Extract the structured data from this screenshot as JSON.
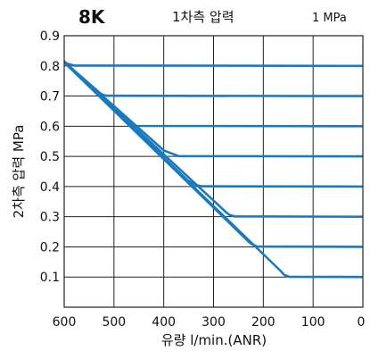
{
  "header": {
    "model": "8K",
    "title": "1차측 압력",
    "value": "1 MPa"
  },
  "chart_data": {
    "type": "line",
    "xlabel": "유량 l/min.(ANR)",
    "ylabel": "2차측 압력 MPa",
    "xlim": [
      600,
      0
    ],
    "ylim": [
      0,
      0.9
    ],
    "x_reversed": true,
    "x_ticks": [
      600,
      500,
      400,
      300,
      200,
      100,
      0
    ],
    "y_ticks": [
      0.1,
      0.2,
      0.3,
      0.4,
      0.5,
      0.6,
      0.7,
      0.8,
      0.9
    ],
    "x_tick_labels": [
      "600",
      "500",
      "400",
      "300",
      "200",
      "100",
      "0"
    ],
    "y_tick_labels": [
      "0.1",
      "0.2",
      "0.3",
      "0.4",
      "0.5",
      "0.6",
      "0.7",
      "0.8",
      "0.9"
    ],
    "grid": true,
    "line_color": "#1a7abf",
    "series": [
      {
        "x": [
          0,
          580,
          595,
          600,
          608
        ],
        "y": [
          0.8,
          0.801,
          0.808,
          0.815,
          0.825
        ]
      },
      {
        "x": [
          0,
          515,
          522,
          528,
          608
        ],
        "y": [
          0.7,
          0.701,
          0.704,
          0.71,
          0.825
        ]
      },
      {
        "x": [
          0,
          455,
          465,
          472,
          608
        ],
        "y": [
          0.6,
          0.601,
          0.605,
          0.615,
          0.825
        ]
      },
      {
        "x": [
          0,
          370,
          385,
          400,
          608
        ],
        "y": [
          0.5,
          0.501,
          0.51,
          0.52,
          0.825
        ]
      },
      {
        "x": [
          0,
          325,
          340,
          352,
          608
        ],
        "y": [
          0.4,
          0.401,
          0.408,
          0.42,
          0.825
        ]
      },
      {
        "x": [
          0,
          258,
          268,
          275,
          608
        ],
        "y": [
          0.3,
          0.301,
          0.306,
          0.315,
          0.825
        ]
      },
      {
        "x": [
          0,
          212,
          220,
          228,
          608
        ],
        "y": [
          0.2,
          0.201,
          0.206,
          0.215,
          0.825
        ]
      },
      {
        "x": [
          0,
          148,
          158,
          165,
          608
        ],
        "y": [
          0.1,
          0.101,
          0.107,
          0.12,
          0.825
        ]
      }
    ]
  }
}
